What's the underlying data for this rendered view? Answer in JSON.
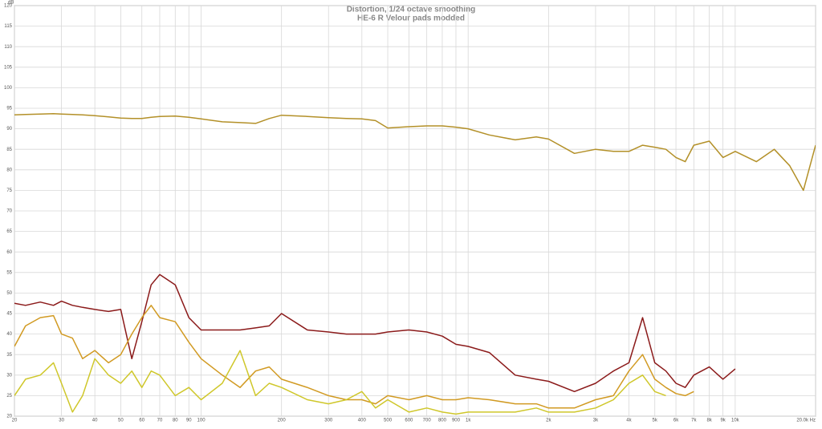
{
  "chart_data": {
    "type": "line",
    "title": "Distortion, 1/24 octave smoothing",
    "subtitle": "HE-6 R Velour pads modded",
    "y_label": "dB",
    "log_x": true,
    "grid": true,
    "xlim": [
      20,
      20000
    ],
    "ylim": [
      20,
      120
    ],
    "xticks": [
      20,
      30,
      40,
      50,
      60,
      70,
      80,
      90,
      100,
      200,
      300,
      400,
      500,
      600,
      700,
      800,
      900,
      {
        "value": 1000,
        "label": "1k"
      },
      {
        "value": 2000,
        "label": "2k"
      },
      {
        "value": 3000,
        "label": "3k"
      },
      {
        "value": 4000,
        "label": "4k"
      },
      {
        "value": 5000,
        "label": "5k"
      },
      {
        "value": 6000,
        "label": "6k"
      },
      {
        "value": 7000,
        "label": "7k"
      },
      {
        "value": 8000,
        "label": "8k"
      },
      {
        "value": 9000,
        "label": "9k"
      },
      {
        "value": 10000,
        "label": "10k"
      },
      {
        "value": 20000,
        "label": "20.0k Hz"
      }
    ],
    "yticks": [
      20,
      25,
      30,
      35,
      40,
      45,
      50,
      55,
      60,
      65,
      70,
      75,
      80,
      85,
      90,
      95,
      100,
      105,
      110,
      115,
      120
    ],
    "x": [
      20,
      22,
      25,
      28,
      30,
      33,
      36,
      40,
      45,
      50,
      55,
      60,
      65,
      70,
      80,
      90,
      100,
      120,
      140,
      160,
      180,
      200,
      250,
      300,
      350,
      400,
      450,
      500,
      600,
      700,
      800,
      900,
      1000,
      1200,
      1500,
      1800,
      2000,
      2500,
      3000,
      3500,
      4000,
      4500,
      5000,
      5500,
      6000,
      6500,
      7000,
      8000,
      9000,
      10000,
      12000,
      14000,
      16000,
      18000,
      20000
    ],
    "series": [
      {
        "color": "#b39028",
        "values": [
          93.4,
          93.5,
          93.6,
          93.7,
          93.6,
          93.5,
          93.4,
          93.2,
          92.9,
          92.6,
          92.5,
          92.5,
          92.8,
          93,
          93.1,
          92.8,
          92.4,
          91.7,
          91.5,
          91.3,
          92.5,
          93.3,
          93,
          92.7,
          92.5,
          92.4,
          92,
          90.2,
          90.5,
          90.7,
          90.7,
          90.4,
          90,
          88.5,
          87.3,
          88,
          87.5,
          84,
          85,
          84.5,
          84.5,
          86,
          85.5,
          85,
          83,
          82,
          86,
          87,
          83,
          84.5,
          82,
          85,
          81,
          75,
          86
        ]
      },
      {
        "color": "#8b1a1a",
        "values": [
          47.5,
          47,
          47.8,
          47,
          48,
          47,
          46.5,
          46,
          45.5,
          46,
          34,
          43,
          52,
          54.5,
          52,
          44,
          41,
          41,
          41,
          41.5,
          42,
          45,
          41,
          40.5,
          40,
          40,
          40,
          40.5,
          41,
          40.5,
          39.5,
          37.5,
          37,
          35.5,
          30,
          29,
          28.5,
          26,
          28,
          31,
          33,
          44,
          33,
          31,
          28,
          27,
          30,
          32,
          29,
          31.5,
          null,
          null,
          null,
          null,
          null
        ]
      },
      {
        "color": "#d19a22",
        "values": [
          37,
          42,
          44,
          44.5,
          40,
          39,
          34,
          36,
          33,
          35,
          40,
          44,
          47,
          44,
          43,
          38,
          34,
          30,
          27,
          31,
          32,
          29,
          27,
          25,
          24,
          24,
          23,
          25,
          24,
          25,
          24,
          24,
          24.5,
          24,
          23,
          23,
          22,
          22,
          24,
          25,
          31,
          35,
          29,
          27,
          25.5,
          25,
          26,
          null,
          null,
          null,
          null,
          null,
          null,
          null,
          null
        ]
      },
      {
        "color": "#cfc72a",
        "values": [
          25,
          29,
          30,
          33,
          28,
          21,
          25,
          34,
          30,
          28,
          31,
          27,
          31,
          30,
          25,
          27,
          24,
          28,
          36,
          25,
          28,
          27,
          24,
          23,
          24,
          26,
          22,
          24,
          21,
          22,
          21,
          20.5,
          21,
          21,
          21,
          22,
          21,
          21,
          22,
          24,
          28,
          30,
          26,
          25,
          null,
          null,
          null,
          null,
          null,
          null,
          null,
          null,
          null,
          null,
          null
        ]
      }
    ]
  }
}
